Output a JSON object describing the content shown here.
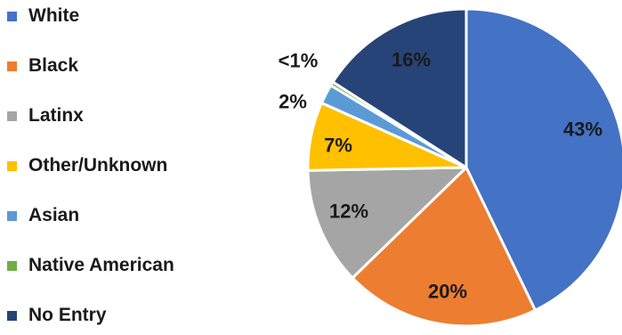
{
  "chart_data": {
    "type": "pie",
    "slices": [
      {
        "label": "White",
        "value": 43,
        "display": "43%",
        "color": "#4472c4"
      },
      {
        "label": "Black",
        "value": 20,
        "display": "20%",
        "color": "#ed7d31"
      },
      {
        "label": "Latinx",
        "value": 12,
        "display": "12%",
        "color": "#a5a5a5"
      },
      {
        "label": "Other/Unknown",
        "value": 7,
        "display": "7%",
        "color": "#ffc000"
      },
      {
        "label": "Asian",
        "value": 2,
        "display": "2%",
        "color": "#5b9bd5"
      },
      {
        "label": "Native American",
        "value": 0.4,
        "display": "<1%",
        "color": "#70ad47"
      },
      {
        "label": "No Entry",
        "value": 16,
        "display": "16%",
        "color": "#264478"
      }
    ],
    "legend_position": "left",
    "start_angle": "12 o'clock",
    "direction": "clockwise"
  }
}
